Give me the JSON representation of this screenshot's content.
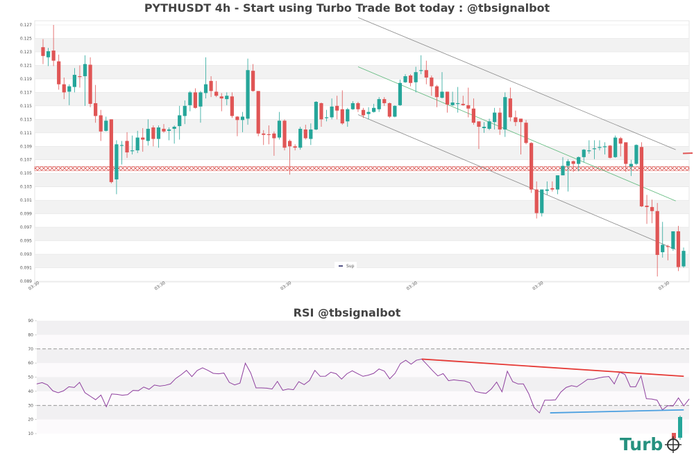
{
  "main_title": "PYTHUSDT 4h - Start using Turbo Trade Bot today : @tbsignalbot",
  "rsi_title": "RSI @tbsignalbot",
  "legend": {
    "label": "Sup",
    "color": "#1a1a5e"
  },
  "colors": {
    "up": "#26a69a",
    "down": "#e05555",
    "rsi_line": "#8e3f9e",
    "rsi_resistance": "#e53935",
    "rsi_support": "#4a9fe0",
    "channel_mid": "#5cb87a",
    "channel_edge": "#888888",
    "zone": "#d9534f"
  },
  "logo": {
    "text": "Turbo",
    "color": "#26917f"
  },
  "chart_data": [
    {
      "type": "candlestick",
      "title": "PYTHUSDT 4h - Start using Turbo Trade Bot today : @tbsignalbot",
      "ylim": [
        0.089,
        0.127
      ],
      "y_ticks": [
        "0.089",
        "0.091",
        "0.093",
        "0.095",
        "0.097",
        "0.099",
        "0.101",
        "0.103",
        "0.105",
        "0.107",
        "0.109",
        "0.111",
        "0.113",
        "0.115",
        "0.117",
        "0.119",
        "0.121",
        "0.123",
        "0.125",
        "0.127"
      ],
      "x_ticks": [
        "03:30",
        "03:30",
        "03:30",
        "03:30",
        "03:30",
        "03:30"
      ],
      "grid": true,
      "legend_position": "bottom-center",
      "ohlc": [
        [
          0.1237,
          0.1249,
          0.1212,
          0.1224
        ],
        [
          0.1222,
          0.1236,
          0.1209,
          0.1231
        ],
        [
          0.1232,
          0.127,
          0.1209,
          0.1217
        ],
        [
          0.1216,
          0.1226,
          0.1174,
          0.1182
        ],
        [
          0.1182,
          0.1192,
          0.116,
          0.117
        ],
        [
          0.1171,
          0.1182,
          0.1151,
          0.1179
        ],
        [
          0.1178,
          0.1206,
          0.117,
          0.1196
        ],
        [
          0.1194,
          0.121,
          0.1177,
          0.1193
        ],
        [
          0.1194,
          0.1225,
          0.115,
          0.1212
        ],
        [
          0.1211,
          0.1222,
          0.1148,
          0.1153
        ],
        [
          0.1154,
          0.1181,
          0.1125,
          0.1135
        ],
        [
          0.1136,
          0.1144,
          0.1098,
          0.1112
        ],
        [
          0.1113,
          0.1134,
          0.1112,
          0.1128
        ],
        [
          0.113,
          0.113,
          0.1035,
          0.1037
        ],
        [
          0.1041,
          0.1099,
          0.1019,
          0.1093
        ],
        [
          0.1091,
          0.1098,
          0.1063,
          0.1092
        ],
        [
          0.1098,
          0.1111,
          0.1073,
          0.1081
        ],
        [
          0.1083,
          0.1106,
          0.1078,
          0.1084
        ],
        [
          0.1084,
          0.1113,
          0.108,
          0.1103
        ],
        [
          0.1103,
          0.1117,
          0.1082,
          0.11
        ],
        [
          0.1098,
          0.113,
          0.1091,
          0.1116
        ],
        [
          0.1118,
          0.1121,
          0.109,
          0.1101
        ],
        [
          0.1101,
          0.1121,
          0.1088,
          0.1118
        ],
        [
          0.1116,
          0.1123,
          0.111,
          0.1112
        ],
        [
          0.1113,
          0.1118,
          0.1099,
          0.1115
        ],
        [
          0.1116,
          0.1121,
          0.1094,
          0.1119
        ],
        [
          0.112,
          0.115,
          0.11,
          0.1136
        ],
        [
          0.1135,
          0.1158,
          0.1123,
          0.115
        ],
        [
          0.1151,
          0.1172,
          0.1142,
          0.117
        ],
        [
          0.117,
          0.1176,
          0.1146,
          0.1147
        ],
        [
          0.1149,
          0.1172,
          0.1125,
          0.117
        ],
        [
          0.1169,
          0.1222,
          0.1161,
          0.1182
        ],
        [
          0.1187,
          0.1194,
          0.1163,
          0.1172
        ],
        [
          0.1171,
          0.1187,
          0.1163,
          0.1165
        ],
        [
          0.1164,
          0.1169,
          0.1142,
          0.1161
        ],
        [
          0.116,
          0.117,
          0.1151,
          0.1165
        ],
        [
          0.1164,
          0.117,
          0.1132,
          0.1135
        ],
        [
          0.1134,
          0.1135,
          0.1105,
          0.1129
        ],
        [
          0.1129,
          0.1141,
          0.1111,
          0.1134
        ],
        [
          0.1131,
          0.122,
          0.1122,
          0.1203
        ],
        [
          0.1202,
          0.1212,
          0.1171,
          0.1172
        ],
        [
          0.1172,
          0.1172,
          0.1105,
          0.1109
        ],
        [
          0.1109,
          0.1114,
          0.1092,
          0.1107
        ],
        [
          0.1108,
          0.1121,
          0.1093,
          0.1107
        ],
        [
          0.1109,
          0.1112,
          0.1076,
          0.1102
        ],
        [
          0.1103,
          0.1141,
          0.11,
          0.1128
        ],
        [
          0.1128,
          0.113,
          0.1084,
          0.1088
        ],
        [
          0.1098,
          0.11,
          0.1048,
          0.109
        ],
        [
          0.109,
          0.1093,
          0.1084,
          0.1088
        ],
        [
          0.1088,
          0.1119,
          0.1085,
          0.1116
        ],
        [
          0.1115,
          0.1122,
          0.11,
          0.1102
        ],
        [
          0.1101,
          0.1124,
          0.1092,
          0.1115
        ],
        [
          0.1115,
          0.1157,
          0.1114,
          0.1156
        ],
        [
          0.1154,
          0.1155,
          0.1119,
          0.113
        ],
        [
          0.1132,
          0.1144,
          0.1127,
          0.1133
        ],
        [
          0.1133,
          0.1161,
          0.113,
          0.1149
        ],
        [
          0.115,
          0.1165,
          0.113,
          0.1143
        ],
        [
          0.1145,
          0.1173,
          0.1122,
          0.1124
        ],
        [
          0.1127,
          0.1147,
          0.1119,
          0.1145
        ],
        [
          0.1145,
          0.1157,
          0.1144,
          0.1154
        ],
        [
          0.1154,
          0.1156,
          0.1141,
          0.1145
        ],
        [
          0.1144,
          0.1147,
          0.1132,
          0.1136
        ],
        [
          0.1138,
          0.1148,
          0.113,
          0.1141
        ],
        [
          0.1141,
          0.1153,
          0.114,
          0.1147
        ],
        [
          0.1145,
          0.1163,
          0.1141,
          0.116
        ],
        [
          0.116,
          0.1163,
          0.115,
          0.1154
        ],
        [
          0.1154,
          0.1155,
          0.1132,
          0.1134
        ],
        [
          0.1134,
          0.1151,
          0.1133,
          0.115
        ],
        [
          0.1151,
          0.1189,
          0.115,
          0.1184
        ],
        [
          0.1185,
          0.1197,
          0.1184,
          0.1194
        ],
        [
          0.1195,
          0.1197,
          0.1179,
          0.1184
        ],
        [
          0.1185,
          0.1208,
          0.117,
          0.12
        ],
        [
          0.1202,
          0.1225,
          0.1197,
          0.1203
        ],
        [
          0.1203,
          0.1217,
          0.1182,
          0.1192
        ],
        [
          0.1192,
          0.1195,
          0.1165,
          0.1179
        ],
        [
          0.1179,
          0.1181,
          0.1148,
          0.1163
        ],
        [
          0.1162,
          0.12,
          0.1161,
          0.1171
        ],
        [
          0.1171,
          0.1171,
          0.114,
          0.1152
        ],
        [
          0.1151,
          0.1171,
          0.115,
          0.1155
        ],
        [
          0.1153,
          0.1178,
          0.114,
          0.1154
        ],
        [
          0.1153,
          0.1165,
          0.115,
          0.1151
        ],
        [
          0.1151,
          0.1177,
          0.1133,
          0.1146
        ],
        [
          0.1146,
          0.1161,
          0.1122,
          0.1125
        ],
        [
          0.1127,
          0.1127,
          0.1086,
          0.1119
        ],
        [
          0.1117,
          0.1126,
          0.111,
          0.1119
        ],
        [
          0.1116,
          0.1131,
          0.1114,
          0.1127
        ],
        [
          0.1126,
          0.1147,
          0.1115,
          0.114
        ],
        [
          0.114,
          0.1147,
          0.1107,
          0.1115
        ],
        [
          0.1115,
          0.117,
          0.1104,
          0.1163
        ],
        [
          0.1161,
          0.1177,
          0.1127,
          0.1133
        ],
        [
          0.1133,
          0.1143,
          0.112,
          0.1126
        ],
        [
          0.1131,
          0.1131,
          0.1078,
          0.1126
        ],
        [
          0.1125,
          0.1129,
          0.1093,
          0.1095
        ],
        [
          0.1095,
          0.1096,
          0.1021,
          0.1026
        ],
        [
          0.1026,
          0.1038,
          0.0983,
          0.0991
        ],
        [
          0.0991,
          0.1026,
          0.0986,
          0.1026
        ],
        [
          0.1024,
          0.1038,
          0.1018,
          0.1026
        ],
        [
          0.1028,
          0.1038,
          0.1023,
          0.1026
        ],
        [
          0.1026,
          0.1047,
          0.1019,
          0.1047
        ],
        [
          0.1047,
          0.1074,
          0.1047,
          0.1061
        ],
        [
          0.1061,
          0.1071,
          0.1023,
          0.1068
        ],
        [
          0.1068,
          0.1069,
          0.1052,
          0.1064
        ],
        [
          0.1064,
          0.1075,
          0.1053,
          0.1074
        ],
        [
          0.1074,
          0.1086,
          0.1066,
          0.1085
        ],
        [
          0.1083,
          0.1099,
          0.1079,
          0.1084
        ],
        [
          0.1086,
          0.1099,
          0.1071,
          0.1087
        ],
        [
          0.1088,
          0.1099,
          0.1084,
          0.1089
        ],
        [
          0.1089,
          0.1096,
          0.1078,
          0.109
        ],
        [
          0.1091,
          0.1092,
          0.1072,
          0.1073
        ],
        [
          0.1074,
          0.1106,
          0.1073,
          0.1103
        ],
        [
          0.1102,
          0.1104,
          0.1075,
          0.1094
        ],
        [
          0.1096,
          0.1096,
          0.1052,
          0.1064
        ],
        [
          0.106,
          0.107,
          0.1046,
          0.1064
        ],
        [
          0.1064,
          0.1093,
          0.1062,
          0.1092
        ],
        [
          0.1089,
          0.1096,
          0.1,
          0.1001
        ],
        [
          0.1002,
          0.1018,
          0.0975,
          0.1
        ],
        [
          0.1,
          0.1011,
          0.0976,
          0.0994
        ],
        [
          0.0994,
          0.1006,
          0.0897,
          0.0929
        ],
        [
          0.0933,
          0.0978,
          0.0925,
          0.0944
        ],
        [
          0.0942,
          0.0944,
          0.0921,
          0.0941
        ],
        [
          0.0938,
          0.0964,
          0.0935,
          0.0964
        ],
        [
          0.0964,
          0.0972,
          0.0905,
          0.0911
        ],
        [
          0.0912,
          0.094,
          0.091,
          0.0935
        ]
      ],
      "zone": {
        "from": 0.1054,
        "to": 0.106
      },
      "last_price_marker": 0.108,
      "trendlines": [
        {
          "role": "channel-upper",
          "from": [
            61,
            0.1281
          ],
          "to": [
            121.5,
            0.1085
          ]
        },
        {
          "role": "channel-mid",
          "from": [
            61,
            0.1208
          ],
          "to": [
            121.5,
            0.1009
          ]
        },
        {
          "role": "channel-lower",
          "from": [
            61,
            0.1137
          ],
          "to": [
            121.5,
            0.0937
          ]
        }
      ]
    },
    {
      "type": "line",
      "title": "RSI @tbsignalbot",
      "ylim": [
        10,
        90
      ],
      "y_ticks": [
        "10",
        "20",
        "30",
        "40",
        "50",
        "60",
        "70",
        "80",
        "90"
      ],
      "levels": [
        30,
        70
      ],
      "grid": true,
      "values": [
        45.2,
        46.1,
        44.5,
        40.3,
        39.0,
        40.3,
        43.2,
        42.7,
        46.3,
        39.0,
        36.5,
        34.0,
        37.3,
        29.0,
        38.1,
        37.8,
        37.2,
        37.6,
        40.6,
        40.4,
        43.0,
        41.4,
        44.4,
        43.7,
        44.2,
        45.2,
        49.1,
        51.7,
        54.8,
        50.4,
        54.7,
        56.6,
        54.8,
        52.7,
        52.4,
        52.9,
        46.3,
        44.5,
        45.8,
        59.9,
        53.0,
        42.4,
        42.4,
        42.2,
        41.6,
        47.0,
        40.7,
        41.6,
        41.1,
        46.8,
        44.7,
        47.6,
        54.8,
        50.6,
        50.7,
        53.5,
        52.4,
        48.6,
        52.4,
        54.5,
        52.5,
        50.6,
        51.4,
        52.7,
        55.8,
        54.3,
        48.8,
        52.7,
        59.6,
        62.0,
        59.2,
        62.0,
        62.8,
        58.8,
        54.7,
        50.9,
        52.5,
        47.5,
        48.1,
        47.6,
        47.3,
        46.0,
        39.9,
        39.0,
        38.5,
        41.6,
        46.5,
        39.6,
        54.2,
        46.8,
        45.2,
        45.2,
        38.3,
        28.5,
        24.7,
        33.7,
        33.7,
        33.9,
        39.4,
        42.7,
        44.0,
        43.2,
        45.7,
        48.4,
        48.4,
        49.4,
        50.1,
        50.4,
        45.2,
        53.5,
        51.9,
        43.2,
        43.2,
        50.9,
        34.7,
        34.5,
        33.7,
        26.8,
        29.8,
        29.6,
        35.3,
        29.6,
        34.5
      ],
      "trendlines": [
        {
          "role": "resistance",
          "from": [
            72,
            62.8
          ],
          "to": [
            121,
            50.6
          ]
        },
        {
          "role": "support",
          "from": [
            96,
            24.7
          ],
          "to": [
            121,
            26.8
          ]
        }
      ]
    }
  ]
}
